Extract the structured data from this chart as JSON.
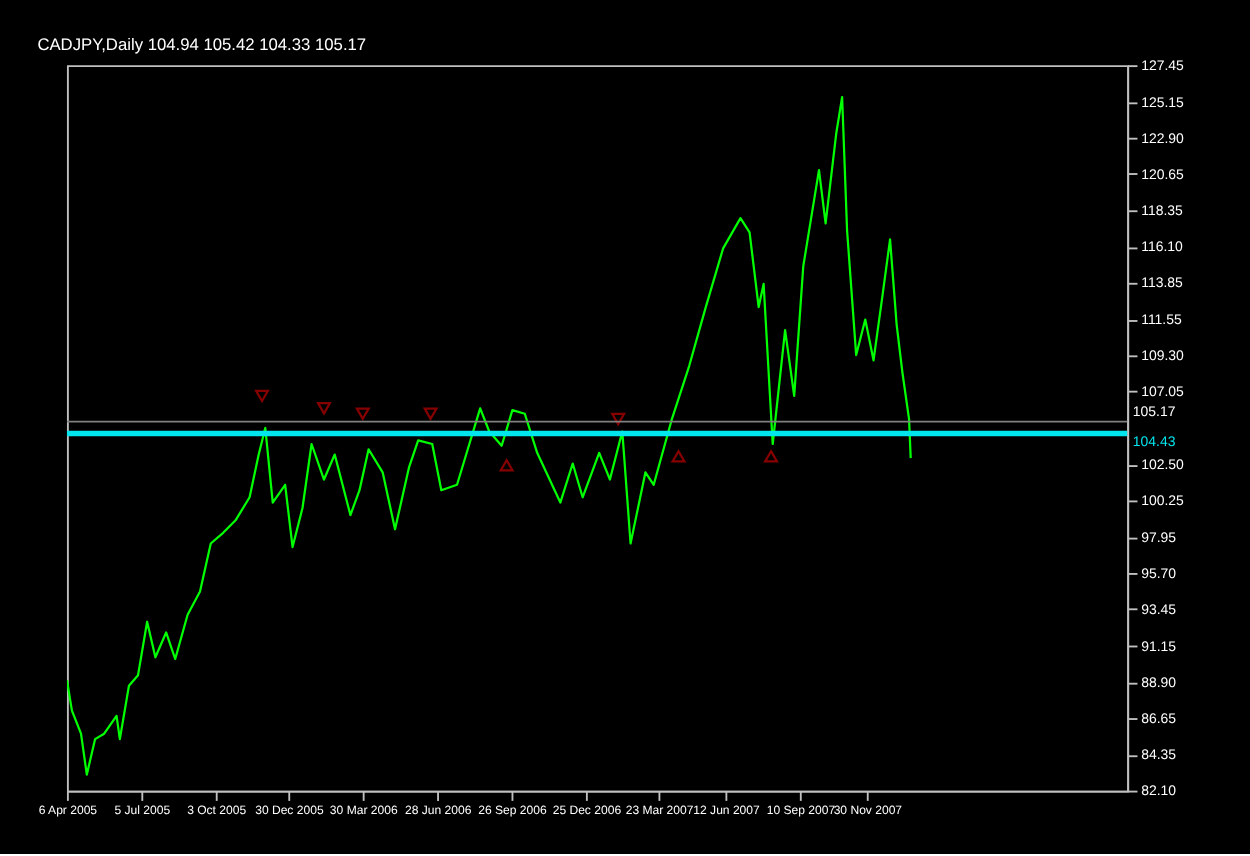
{
  "chart_data": {
    "type": "line",
    "title": "CADJPY,Daily  104.94 105.42 104.33 105.17",
    "x": [
      "2005-04-06",
      "2005-04-12",
      "2005-04-23",
      "2005-04-30",
      "2005-05-10",
      "2005-05-21",
      "2005-06-05",
      "2005-06-09",
      "2005-06-20",
      "2005-07-01",
      "2005-07-12",
      "2005-07-22",
      "2005-08-04",
      "2005-08-15",
      "2005-08-30",
      "2005-09-14",
      "2005-09-27",
      "2005-10-12",
      "2005-10-27",
      "2005-11-13",
      "2005-11-24",
      "2005-12-02",
      "2005-12-11",
      "2005-12-26",
      "2006-01-04",
      "2006-01-16",
      "2006-01-27",
      "2006-02-11",
      "2006-02-24",
      "2006-03-15",
      "2006-03-26",
      "2006-04-06",
      "2006-04-23",
      "2006-05-08",
      "2006-05-25",
      "2006-06-05",
      "2006-06-22",
      "2006-07-03",
      "2006-07-22",
      "2006-08-04",
      "2006-08-19",
      "2006-08-30",
      "2006-09-14",
      "2006-09-27",
      "2006-10-12",
      "2006-10-27",
      "2006-11-24",
      "2006-12-09",
      "2006-12-21",
      "2007-01-10",
      "2007-01-23",
      "2007-02-07",
      "2007-02-17",
      "2007-03-07",
      "2007-03-17",
      "2007-04-08",
      "2007-04-29",
      "2007-05-19",
      "2007-06-09",
      "2007-06-30",
      "2007-07-11",
      "2007-07-22",
      "2007-07-28",
      "2007-08-08",
      "2007-08-23",
      "2007-09-03",
      "2007-09-14",
      "2007-10-03",
      "2007-10-11",
      "2007-10-24",
      "2007-10-31",
      "2007-11-06",
      "2007-11-17",
      "2007-11-28",
      "2007-12-08",
      "2007-12-19",
      "2007-12-28",
      "2008-01-05",
      "2008-01-12",
      "2008-01-20",
      "2008-01-22"
    ],
    "series": [
      {
        "color": "#00ff00",
        "values": [
          89.0,
          87.1,
          85.66,
          83.1,
          85.32,
          85.66,
          86.77,
          85.32,
          88.66,
          89.32,
          92.66,
          90.44,
          91.99,
          90.33,
          93.1,
          94.55,
          97.55,
          98.22,
          99.0,
          100.44,
          103.11,
          104.77,
          100.11,
          101.22,
          97.33,
          99.77,
          103.77,
          101.55,
          103.11,
          99.33,
          100.88,
          103.44,
          102.0,
          98.44,
          102.33,
          104.0,
          103.77,
          100.88,
          101.22,
          103.44,
          106.0,
          104.55,
          103.66,
          105.89,
          105.66,
          103.22,
          100.11,
          102.55,
          100.44,
          103.22,
          101.55,
          104.55,
          97.55,
          102.0,
          101.22,
          105.33,
          108.66,
          112.33,
          116.0,
          117.89,
          117.0,
          112.33,
          113.78,
          103.77,
          110.89,
          106.78,
          114.89,
          120.89,
          117.56,
          123.23,
          125.45,
          117.11,
          109.33,
          111.55,
          109.0,
          113.11,
          116.56,
          111.22,
          108.22,
          105.33,
          102.89
        ]
      },
      {
        "type": "scatter",
        "marker": "triangle-down",
        "color": "#c00000",
        "x": [
          "2005-11-28",
          "2006-02-11",
          "2006-03-30",
          "2006-06-20",
          "2007-02-02"
        ],
        "values": [
          106.78,
          106.0,
          105.66,
          105.66,
          105.33
        ]
      },
      {
        "type": "scatter",
        "marker": "triangle",
        "color": "#c00000",
        "x": [
          "2006-09-20",
          "2007-04-16",
          "2007-08-06"
        ],
        "values": [
          102.44,
          103.0,
          103.0
        ]
      }
    ],
    "xlim": [
      "2005-04-06",
      "2008-10-10"
    ],
    "xticks": [
      {
        "value": "2005-04-06",
        "label": "6 Apr 2005"
      },
      {
        "value": "2005-07-05",
        "label": "5 Jul 2005"
      },
      {
        "value": "2005-10-03",
        "label": "3 Oct 2005"
      },
      {
        "value": "2005-12-30",
        "label": "30 Dec 2005"
      },
      {
        "value": "2006-03-30",
        "label": "30 Mar 2006"
      },
      {
        "value": "2006-06-28",
        "label": "28 Jun 2006"
      },
      {
        "value": "2006-09-26",
        "label": "26 Sep 2006"
      },
      {
        "value": "2006-12-25",
        "label": "25 Dec 2006"
      },
      {
        "value": "2007-03-23",
        "label": "23 Mar 2007"
      },
      {
        "value": "2007-06-12",
        "label": "12 Jun 2007"
      },
      {
        "value": "2007-09-10",
        "label": "10 Sep 2007"
      },
      {
        "value": "2007-11-30",
        "label": "30 Nov 2007"
      }
    ],
    "ylim": [
      82.1,
      127.45
    ],
    "yticks": [
      127.45,
      125.15,
      {
        "value": 122.9,
        "label": "122.90"
      },
      120.65,
      118.35,
      {
        "value": 116.1,
        "label": "116.10"
      },
      113.85,
      111.55,
      {
        "value": 109.3,
        "label": "109.30"
      },
      107.05,
      {
        "value": 102.5,
        "label": "102.50"
      },
      100.25,
      97.95,
      {
        "value": 95.7,
        "label": "95.70"
      },
      93.45,
      91.15,
      {
        "value": 88.9,
        "label": "88.90"
      },
      86.65,
      84.35,
      {
        "value": 82.1,
        "label": "82.10"
      }
    ],
    "ref_lines": [
      {
        "axis": "y",
        "value": 105.17,
        "label": "105.17",
        "color": "#808080"
      },
      {
        "axis": "y",
        "value": 104.43,
        "label": "104.43",
        "color": "#00e5ee"
      }
    ],
    "grid": false
  }
}
